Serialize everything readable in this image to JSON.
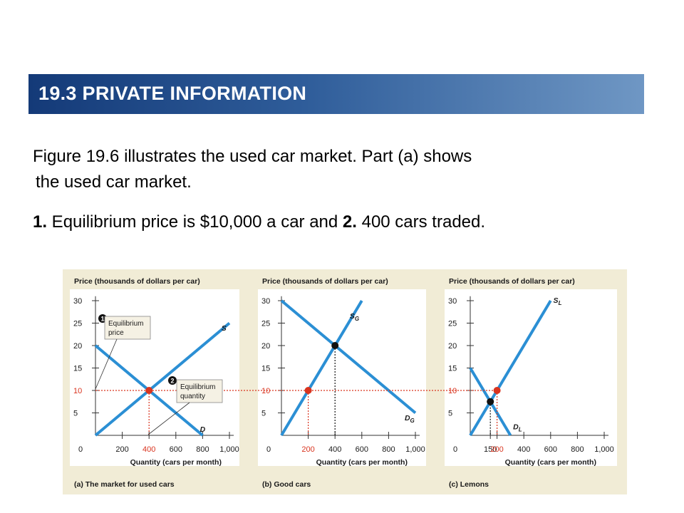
{
  "slide": {
    "title": "19.3 PRIVATE INFORMATION",
    "paragraph_line1": "Figure 19.6 illustrates the used car market. Part (a) shows",
    "paragraph_line2": "the used car market.",
    "point_num1": "1.",
    "point_text1": " Equilibrium price is $10,000 a car and ",
    "point_num2": "2.",
    "point_text2": " 400 cars traded."
  },
  "colors": {
    "title_start": "#143a78",
    "title_end": "#6f97c4",
    "curve": "#2b8fd4",
    "highlight": "#d9341f",
    "figure_bg": "#f1ecd6"
  },
  "chart_data": [
    {
      "type": "line",
      "ylabel": "Price (thousands of dollars per car)",
      "xlabel": "Quantity (cars per month)",
      "caption_letter": "(a)",
      "caption": "The market for used cars",
      "xlim": [
        0,
        1000
      ],
      "ylim": [
        0,
        30
      ],
      "x_ticks": [
        "0",
        "200",
        "400",
        "600",
        "800",
        "1,000"
      ],
      "y_ticks": [
        "5",
        "10",
        "15",
        "20",
        "25",
        "30"
      ],
      "series": [
        {
          "name": "S",
          "x": [
            0,
            1000
          ],
          "y": [
            0,
            25
          ]
        },
        {
          "name": "D",
          "x": [
            0,
            800
          ],
          "y": [
            20,
            0
          ]
        }
      ],
      "equilibrium": {
        "x": 400,
        "y": 10
      },
      "annotations": [
        {
          "badge": "1",
          "text": [
            "Equilibrium",
            "price"
          ]
        },
        {
          "badge": "2",
          "text": [
            "Equilibrium",
            "quantity"
          ]
        }
      ]
    },
    {
      "type": "line",
      "ylabel": "Price (thousands of dollars per car)",
      "xlabel": "Quantity (cars per month)",
      "caption_letter": "(b)",
      "caption": "Good cars",
      "xlim": [
        0,
        1000
      ],
      "ylim": [
        0,
        30
      ],
      "x_ticks": [
        "0",
        "200",
        "400",
        "600",
        "800",
        "1,000"
      ],
      "y_ticks": [
        "5",
        "10",
        "15",
        "20",
        "25",
        "30"
      ],
      "series": [
        {
          "name": "S",
          "subscript": "G",
          "x": [
            0,
            600
          ],
          "y": [
            0,
            30
          ]
        },
        {
          "name": "D",
          "subscript": "G",
          "x": [
            0,
            1000
          ],
          "y": [
            30,
            5
          ]
        }
      ],
      "points": [
        {
          "x": 200,
          "y": 10,
          "style": "red"
        },
        {
          "x": 400,
          "y": 20,
          "style": "black"
        }
      ]
    },
    {
      "type": "line",
      "ylabel": "Price (thousands of dollars per car)",
      "xlabel": "Quantity (cars per month)",
      "caption_letter": "(c)",
      "caption": "Lemons",
      "xlim": [
        0,
        1000
      ],
      "ylim": [
        0,
        30
      ],
      "x_ticks": [
        "0",
        "150",
        "200",
        "400",
        "600",
        "800",
        "1,000"
      ],
      "y_ticks": [
        "5",
        "10",
        "15",
        "20",
        "25",
        "30"
      ],
      "series": [
        {
          "name": "S",
          "subscript": "L",
          "x": [
            0,
            600
          ],
          "y": [
            0,
            30
          ]
        },
        {
          "name": "D",
          "subscript": "L",
          "x": [
            0,
            300
          ],
          "y": [
            15,
            0
          ]
        }
      ],
      "points": [
        {
          "x": 200,
          "y": 10,
          "style": "red"
        },
        {
          "x": 150,
          "y": 7.5,
          "style": "black"
        }
      ]
    }
  ]
}
